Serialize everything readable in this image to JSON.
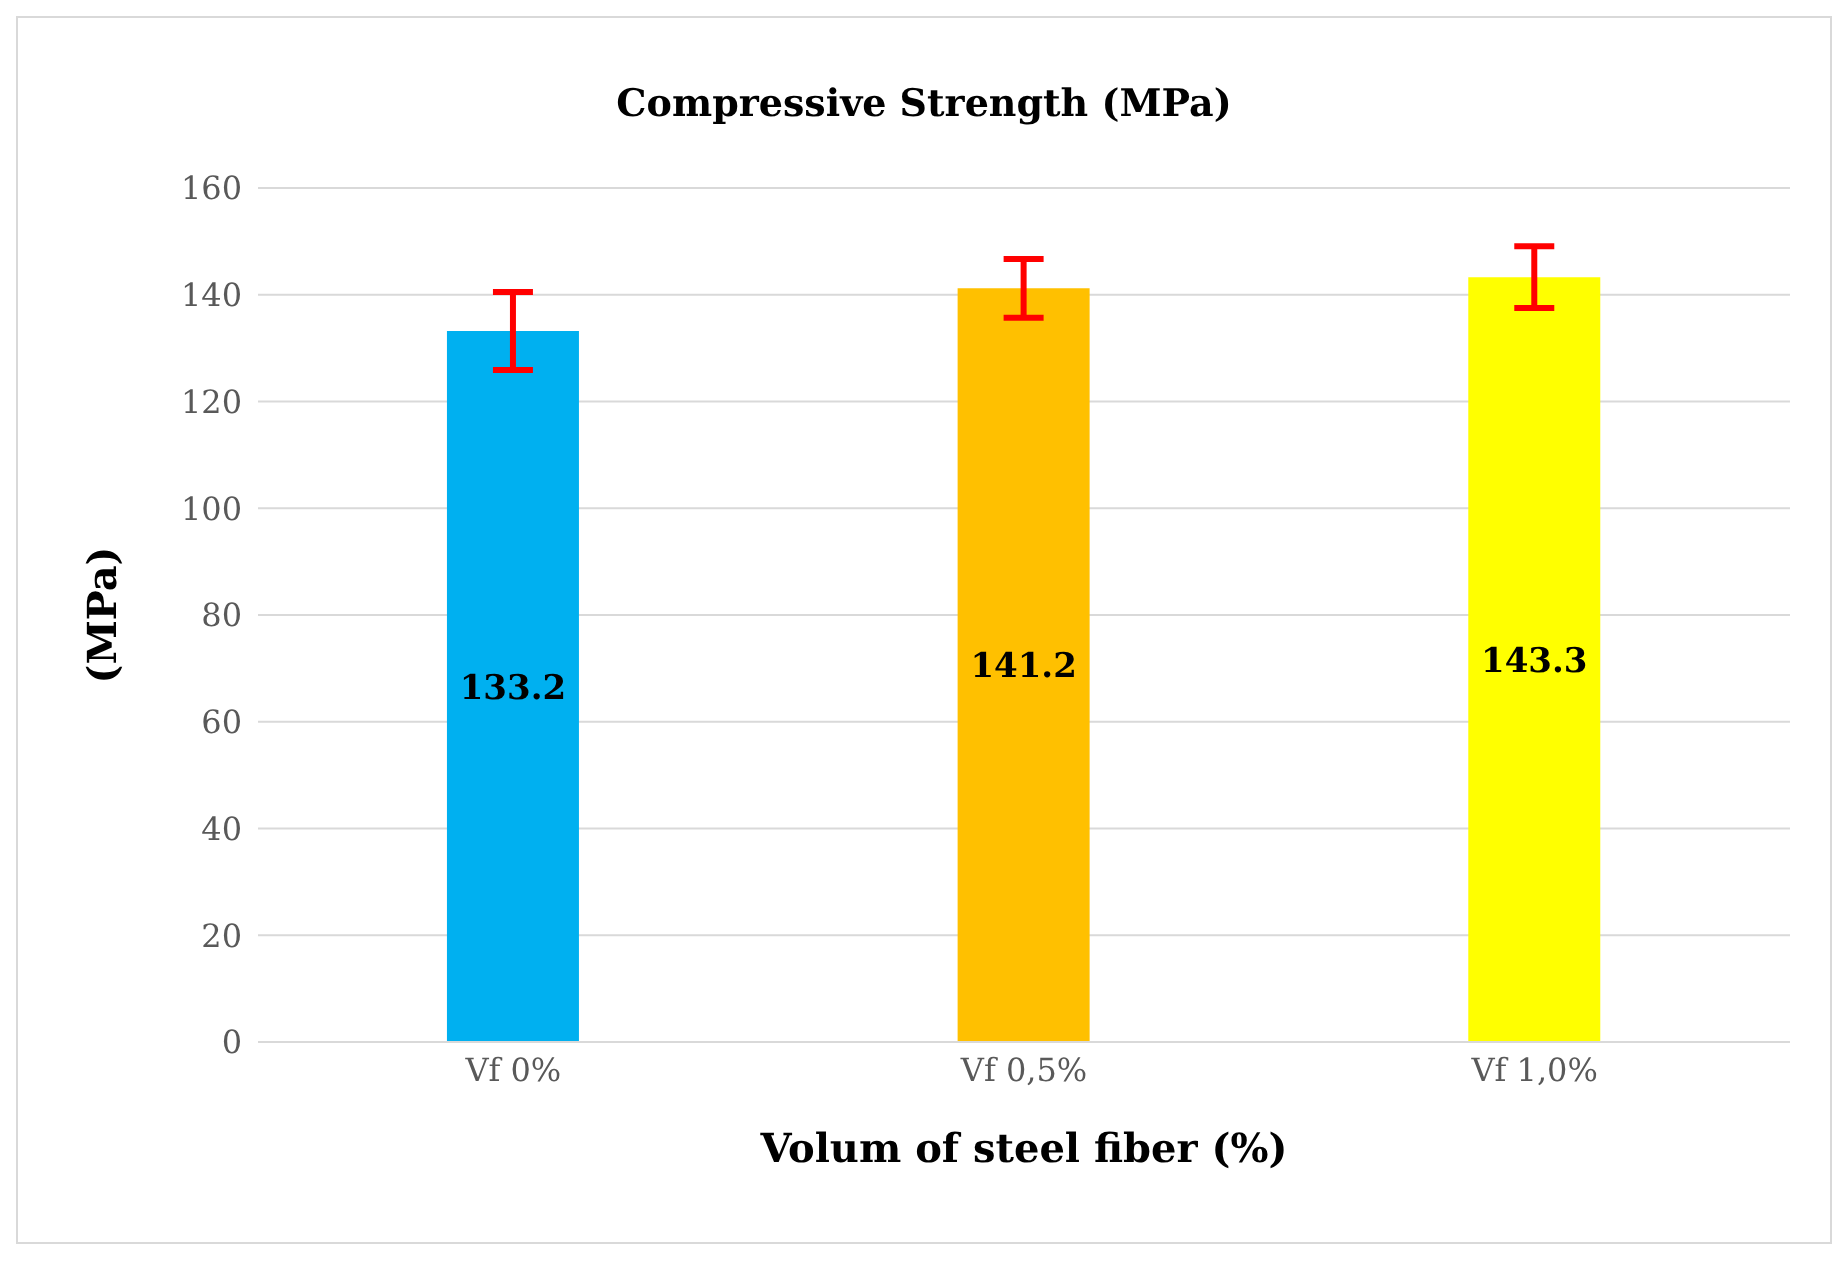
{
  "chart_data": {
    "type": "bar",
    "title": "Compressive Strength (MPa)",
    "xlabel": "Volum of steel fiber (%)",
    "ylabel": "(MPa)",
    "categories": [
      "Vf 0%",
      "Vf 0,5%",
      "Vf 1,0%"
    ],
    "values": [
      133.2,
      141.2,
      143.3
    ],
    "colors": [
      "#00b0f0",
      "#ffc000",
      "#ffff00"
    ],
    "errors": [
      7.3,
      5.5,
      5.8
    ],
    "ylim": [
      0,
      160
    ],
    "yticks": [
      0,
      20,
      40,
      60,
      80,
      100,
      120,
      140,
      160
    ],
    "grid": "y",
    "data_labels": true
  }
}
